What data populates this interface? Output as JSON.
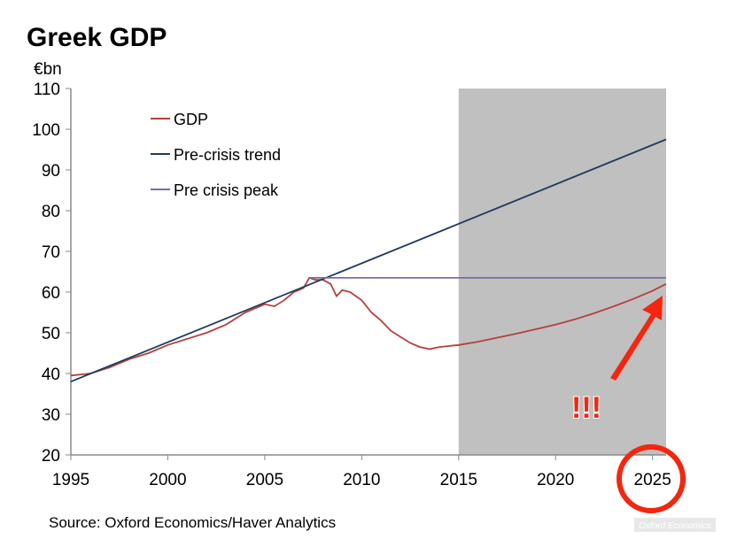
{
  "chart_data": {
    "type": "line",
    "title": "Greek GDP",
    "ylabel": "€bn",
    "xlabel": "",
    "xlim": [
      1995,
      2025.7
    ],
    "ylim": [
      20,
      110
    ],
    "yticks": [
      20,
      30,
      40,
      50,
      60,
      70,
      80,
      90,
      100,
      110
    ],
    "xticks": [
      1995,
      2000,
      2005,
      2010,
      2015,
      2020,
      2025
    ],
    "grid": false,
    "legend_position": "top-left",
    "shaded_region": {
      "from": 2015,
      "to": 2025.7,
      "color": "#c0c0c0"
    },
    "series": [
      {
        "name": "GDP",
        "color": "#b5413a",
        "x": [
          1995,
          1996,
          1997,
          1998,
          1999,
          2000,
          2001,
          2002,
          2003,
          2004,
          2005,
          2005.5,
          2006,
          2006.5,
          2007,
          2007.3,
          2007.6,
          2008,
          2008.4,
          2008.7,
          2009,
          2009.4,
          2010,
          2010.5,
          2011,
          2011.5,
          2012,
          2012.5,
          2013,
          2013.5,
          2014,
          2015,
          2016,
          2017,
          2018,
          2019,
          2020,
          2021,
          2022,
          2023,
          2024,
          2025,
          2025.7
        ],
        "y": [
          39.5,
          40,
          41.5,
          43.5,
          45,
          47,
          48.5,
          50,
          52,
          55,
          57,
          56.5,
          58,
          60,
          61,
          63.5,
          63,
          63,
          62,
          59,
          60.5,
          60,
          58,
          55,
          53,
          50.5,
          49,
          47.5,
          46.5,
          46,
          46.5,
          47,
          47.8,
          48.8,
          49.8,
          50.9,
          52,
          53.3,
          54.8,
          56.5,
          58.3,
          60.3,
          62
        ]
      },
      {
        "name": "Pre-crisis trend",
        "color": "#1f3a5f",
        "x": [
          1995,
          2025.7
        ],
        "y": [
          38,
          97.5
        ]
      },
      {
        "name": "Pre crisis peak",
        "color": "#7b6bb0",
        "x": [
          2007.3,
          2025.7
        ],
        "y": [
          63.5,
          63.5
        ]
      }
    ],
    "annotations": [
      "!!!"
    ],
    "source": "Source: Oxford Economics/Haver Analytics",
    "watermark": "Oxford Economics"
  }
}
